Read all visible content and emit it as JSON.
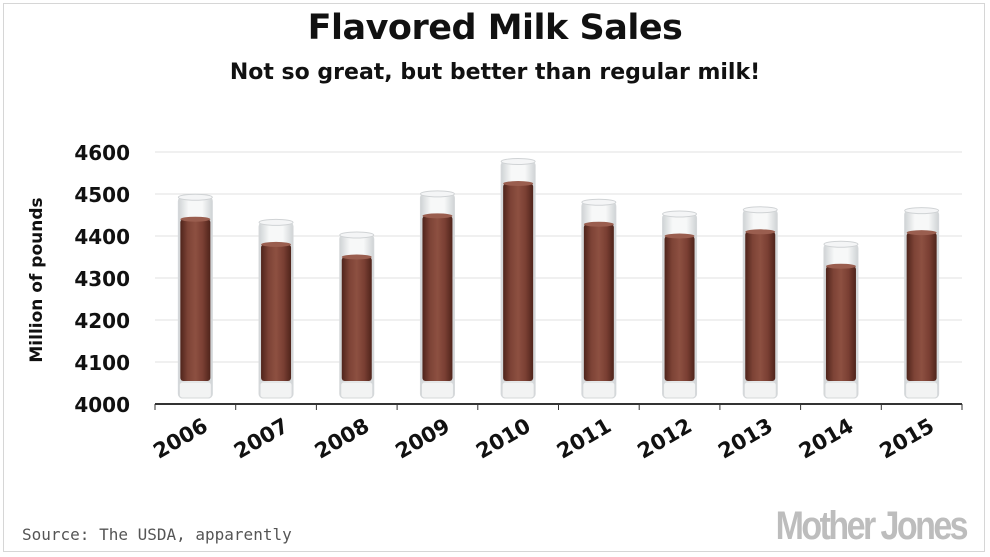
{
  "header": {
    "title": "Flavored Milk Sales",
    "subtitle": "Not so great, but better than regular milk!"
  },
  "footer": {
    "source": "Source: The USDA, apparently",
    "brand": "Mother Jones"
  },
  "colors": {
    "milk": "#7a3f33",
    "milk_dark": "#5a2a20",
    "glass": "#eef0f1",
    "gridline": "#e2e2e2",
    "axis": "#333333"
  },
  "chart_data": {
    "type": "bar",
    "categories": [
      "2006",
      "2007",
      "2008",
      "2009",
      "2010",
      "2011",
      "2012",
      "2013",
      "2014",
      "2015"
    ],
    "values": [
      4440,
      4380,
      4350,
      4448,
      4525,
      4428,
      4400,
      4410,
      4328,
      4408
    ],
    "ylabel": "Million of pounds",
    "xlabel": "",
    "ylim": [
      4000,
      4600
    ],
    "yticks": [
      "4000",
      "4100",
      "4200",
      "4300",
      "4400",
      "4500",
      "4600"
    ],
    "grid": true,
    "legend": "none"
  }
}
